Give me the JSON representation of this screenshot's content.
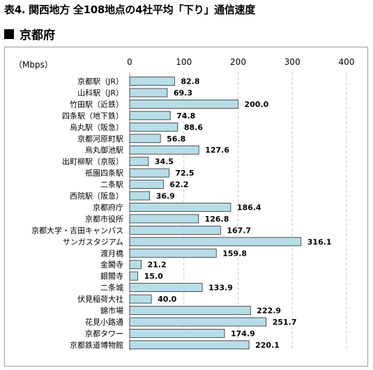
{
  "title": "表4. 関西地方 全108地点の4社平均「下り」通信速度",
  "subtitle": "京都府",
  "chart_data": {
    "type": "bar",
    "orientation": "horizontal",
    "unit_label": "（Mbps）",
    "xlim": [
      0,
      400
    ],
    "ticks": [
      0,
      100,
      200,
      300,
      400
    ],
    "grid": "vertical dashed",
    "bar_color": "#b7dde8",
    "categories": [
      "京都駅（JR）",
      "山科駅（JR）",
      "竹田駅（近鉄）",
      "四条駅（地下鉄）",
      "烏丸駅（阪急）",
      "京都河原町駅",
      "烏丸御池駅",
      "出町柳駅（京阪）",
      "祇園四条駅",
      "二条駅",
      "西院駅（阪急）",
      "京都府庁",
      "京都市役所",
      "京都大学・吉田キャンパス",
      "サンガスタジアム",
      "渡月橋",
      "金閣寺",
      "銀閣寺",
      "二条城",
      "伏見稲荷大社",
      "錦市場",
      "花見小路通",
      "京都タワー",
      "京都鉄道博物館"
    ],
    "values": [
      82.8,
      69.3,
      200.0,
      74.8,
      88.6,
      56.8,
      127.6,
      34.5,
      72.5,
      62.2,
      36.9,
      186.4,
      126.8,
      167.7,
      316.1,
      159.8,
      21.2,
      15.0,
      133.9,
      40.0,
      222.9,
      251.7,
      174.9,
      220.1
    ],
    "value_labels": [
      "82.8",
      "69.3",
      "200.0",
      "74.8",
      "88.6",
      "56.8",
      "127.6",
      "34.5",
      "72.5",
      "62.2",
      "36.9",
      "186.4",
      "126.8",
      "167.7",
      "316.1",
      "159.8",
      "21.2",
      "15.0",
      "133.9",
      "40.0",
      "222.9",
      "251.7",
      "174.9",
      "220.1"
    ]
  }
}
